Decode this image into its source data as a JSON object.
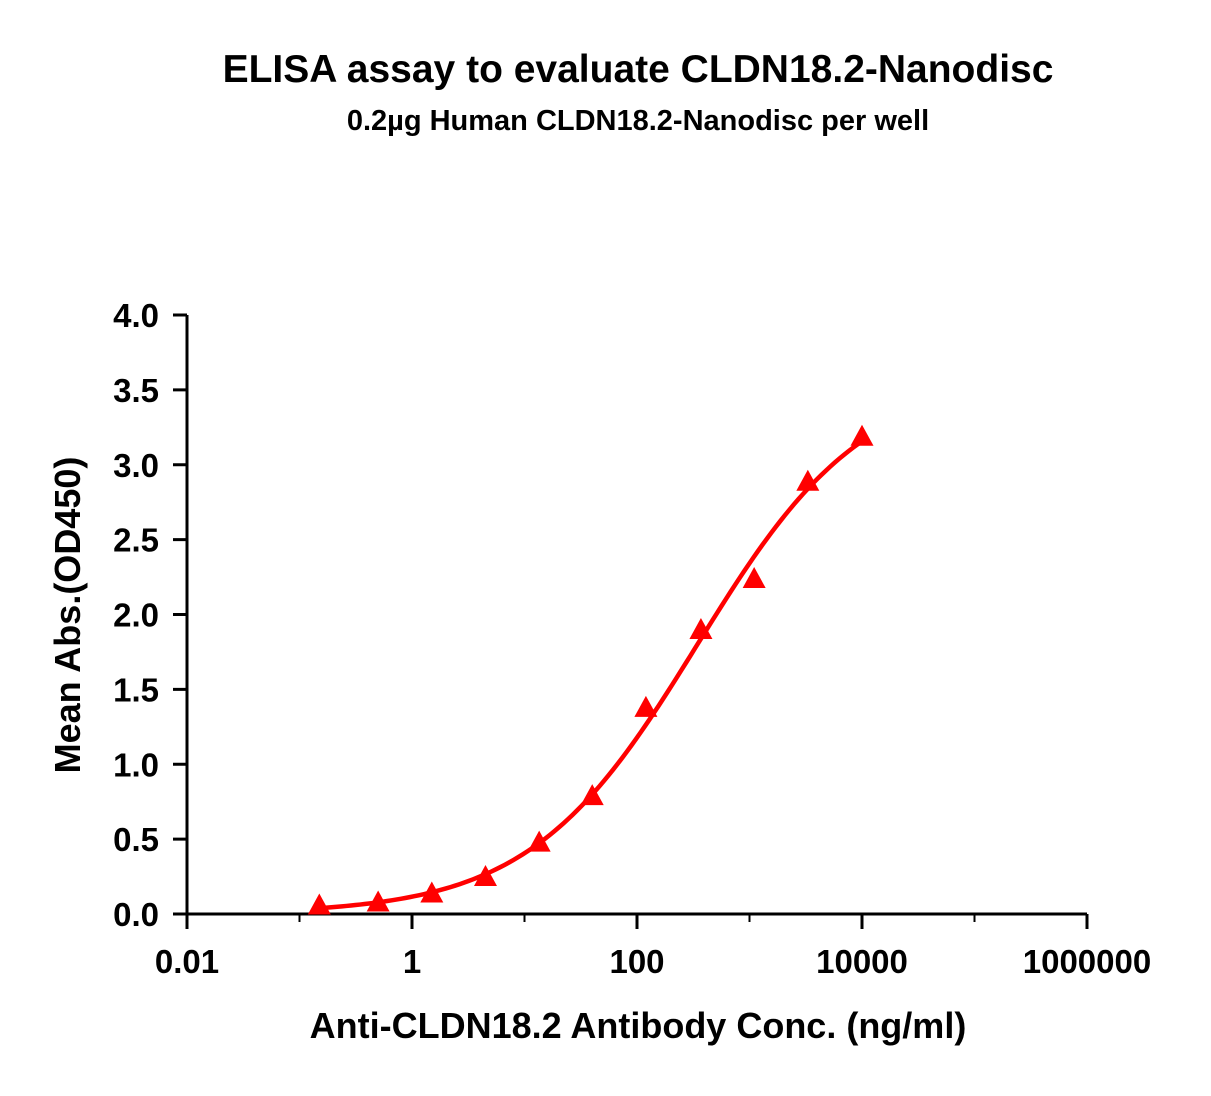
{
  "chart_data": {
    "type": "scatter",
    "title": "ELISA assay to evaluate CLDN18.2-Nanodisc",
    "subtitle": "0.2µg Human CLDN18.2-Nanodisc per well",
    "xlabel": "Anti-CLDN18.2 Antibody Conc. (ng/ml)",
    "ylabel": "Mean Abs.(OD450)",
    "x_scale": "log",
    "xlim": [
      0.01,
      1000000
    ],
    "ylim": [
      0,
      4
    ],
    "x_ticks": [
      0.01,
      1,
      100,
      10000,
      1000000
    ],
    "x_tick_labels": [
      "0.01",
      "1",
      "100",
      "10000",
      "1000000"
    ],
    "x_minor_ticks": [
      0.1,
      10,
      1000,
      100000
    ],
    "y_ticks": [
      0,
      0.5,
      1,
      1.5,
      2,
      2.5,
      3,
      3.5,
      4
    ],
    "y_tick_labels": [
      "0.0",
      "0.5",
      "1.0",
      "1.5",
      "2.0",
      "2.5",
      "3.0",
      "3.5",
      "4.0"
    ],
    "grid": false,
    "legend": "none",
    "series": [
      {
        "marker": "triangle",
        "color": "#ff0000",
        "fit_line": true,
        "x": [
          0.15,
          0.5,
          1.5,
          4.5,
          13.5,
          40,
          120,
          370,
          1100,
          3300,
          10000
        ],
        "y": [
          0.05,
          0.07,
          0.13,
          0.24,
          0.47,
          0.78,
          1.37,
          1.89,
          2.23,
          2.88,
          3.18
        ]
      }
    ]
  }
}
